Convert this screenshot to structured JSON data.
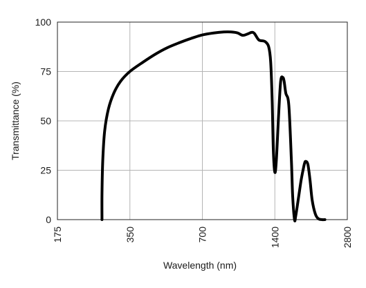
{
  "chart_data": {
    "type": "line",
    "title": "",
    "xlabel": "Wavelength (nm)",
    "ylabel": "Transmittance (%)",
    "x_scale": "log",
    "xlim": [
      175,
      2800
    ],
    "ylim": [
      0,
      100
    ],
    "x_ticks": [
      175,
      350,
      700,
      1400,
      2800
    ],
    "x_tick_labels": [
      "175",
      "350",
      "700",
      "1400",
      "2800"
    ],
    "y_ticks": [
      0,
      25,
      50,
      75,
      100
    ],
    "y_tick_labels": [
      "0",
      "25",
      "50",
      "75",
      "100"
    ],
    "grid": true,
    "legend": "none",
    "colors": {
      "line": "#000000",
      "grid": "#b4b4b4",
      "axes": "#222222"
    },
    "series": [
      {
        "x": [
          268,
          268,
          270,
          275,
          285,
          300,
          320,
          350,
          400,
          450,
          500,
          560,
          620,
          700,
          780,
          860,
          920,
          980,
          1030,
          1080,
          1120,
          1150,
          1200,
          1250,
          1280,
          1320,
          1345,
          1365,
          1380,
          1400,
          1420,
          1450,
          1480,
          1510,
          1530,
          1555,
          1600,
          1640,
          1660,
          1690,
          1710,
          1760,
          1800,
          1840,
          1860,
          1880,
          1920,
          1960,
          2000,
          2060,
          2120,
          2200,
          2260
        ],
        "y": [
          0,
          13,
          30,
          45,
          56,
          64,
          70,
          75,
          80,
          84,
          87,
          89.5,
          91.5,
          93.5,
          94.5,
          95,
          95,
          94.5,
          93.3,
          94,
          94.8,
          94.3,
          91,
          90.5,
          90,
          87.5,
          80,
          60,
          35,
          24,
          30,
          52,
          70,
          72,
          70,
          64,
          58,
          30,
          12,
          0,
          2,
          12,
          20,
          26,
          28.5,
          29.5,
          28,
          20,
          10,
          3,
          0.5,
          0,
          0
        ]
      }
    ]
  }
}
